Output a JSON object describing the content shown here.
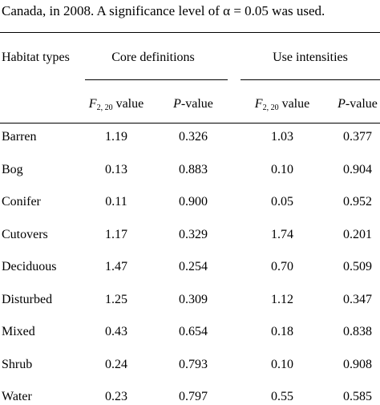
{
  "caption": "Canada, in 2008. A significance level of α = 0.05 was used.",
  "header": {
    "col_habitat": "Habitat types",
    "group_core": "Core definitions",
    "group_use": "Use intensities",
    "f_symbol": "F",
    "f_subscript": "2, 20",
    "f_suffix": " value",
    "p_symbol": "P",
    "p_suffix": "-value"
  },
  "rows": [
    {
      "habitat": "Barren",
      "core_f": "1.19",
      "core_p": "0.326",
      "use_f": "1.03",
      "use_p": "0.377"
    },
    {
      "habitat": "Bog",
      "core_f": "0.13",
      "core_p": "0.883",
      "use_f": "0.10",
      "use_p": "0.904"
    },
    {
      "habitat": "Conifer",
      "core_f": "0.11",
      "core_p": "0.900",
      "use_f": "0.05",
      "use_p": "0.952"
    },
    {
      "habitat": "Cutovers",
      "core_f": "1.17",
      "core_p": "0.329",
      "use_f": "1.74",
      "use_p": "0.201"
    },
    {
      "habitat": "Deciduous",
      "core_f": "1.47",
      "core_p": "0.254",
      "use_f": "0.70",
      "use_p": "0.509"
    },
    {
      "habitat": "Disturbed",
      "core_f": "1.25",
      "core_p": "0.309",
      "use_f": "1.12",
      "use_p": "0.347"
    },
    {
      "habitat": "Mixed",
      "core_f": "0.43",
      "core_p": "0.654",
      "use_f": "0.18",
      "use_p": "0.838"
    },
    {
      "habitat": "Shrub",
      "core_f": "0.24",
      "core_p": "0.793",
      "use_f": "0.10",
      "use_p": "0.908"
    },
    {
      "habitat": "Water",
      "core_f": "0.23",
      "core_p": "0.797",
      "use_f": "0.55",
      "use_p": "0.585"
    }
  ]
}
